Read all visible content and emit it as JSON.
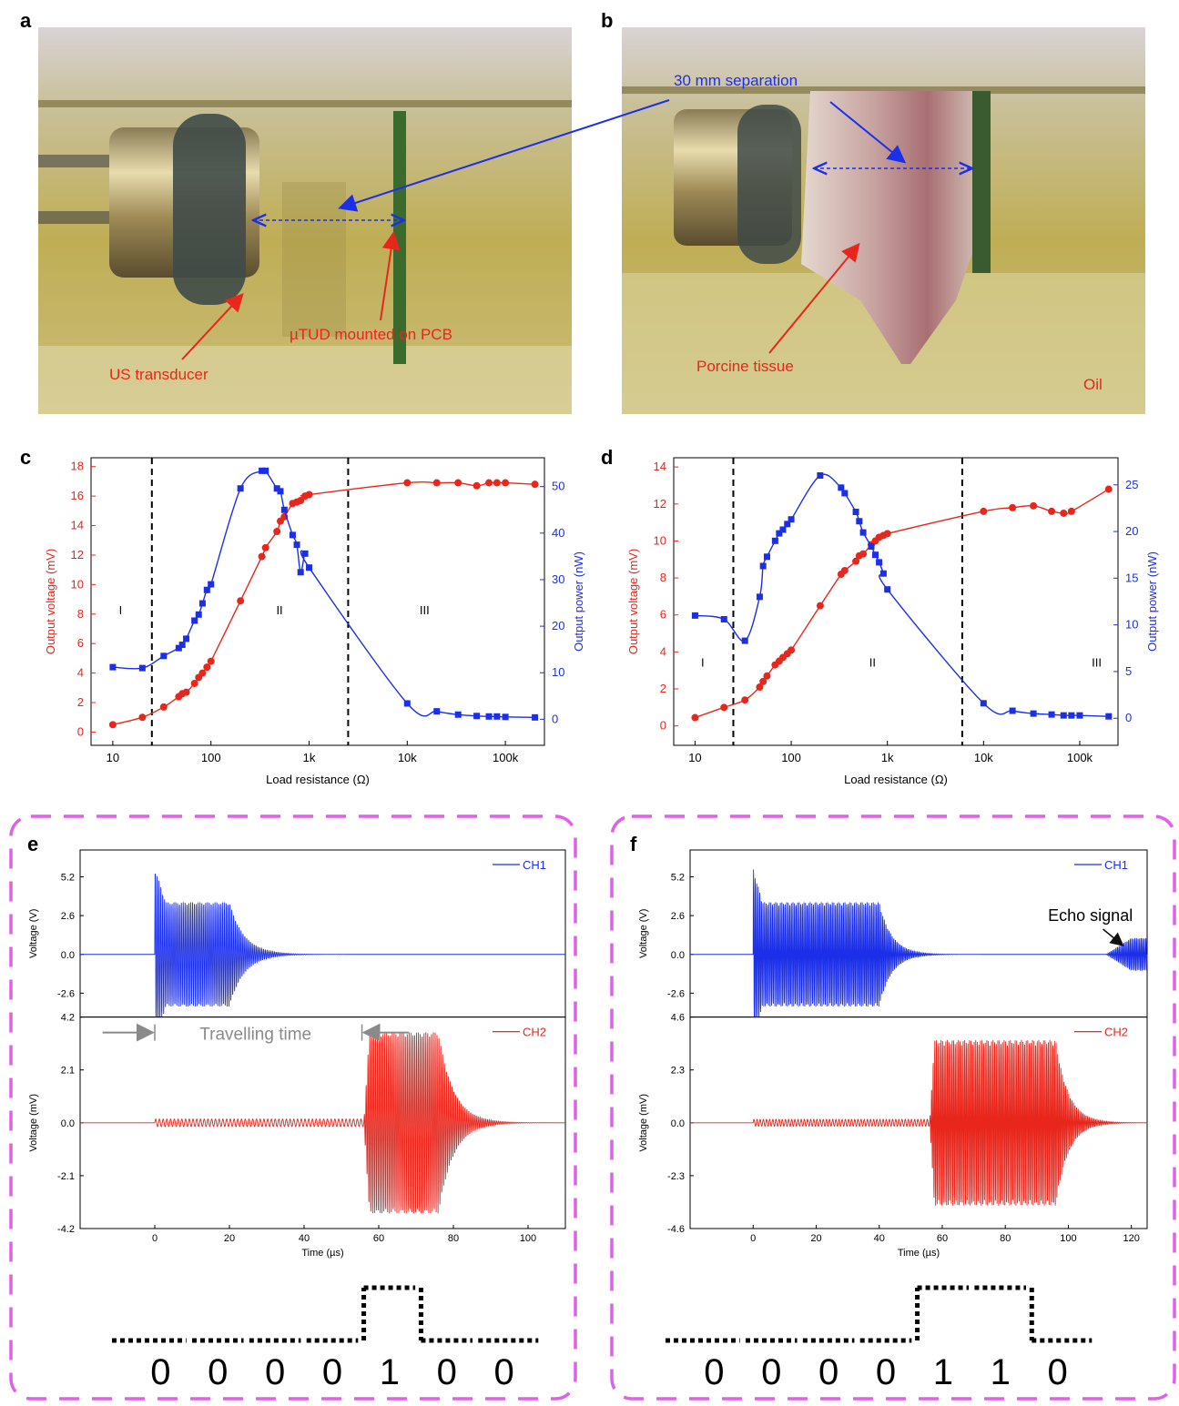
{
  "panel_labels": [
    "a",
    "b",
    "c",
    "d",
    "e",
    "f"
  ],
  "photo_annotations": {
    "a": {
      "us_transducer": "US transducer",
      "mtud": "µTUD mounted on PCB"
    },
    "b": {
      "separation": "30 mm separation",
      "porcine": "Porcine tissue",
      "oil": "Oil"
    }
  },
  "colors": {
    "red": "#e8261c",
    "blue": "#1c2fe8",
    "magenta": "#e060e8",
    "grey": "#8a8a8a",
    "photo_bg": "#b7a74e"
  },
  "chart_data": [
    {
      "id": "c",
      "type": "scatter",
      "x_scale": "log",
      "xlabel": "Load resistance (Ω)",
      "ylabel_left": "Output voltage (mV)",
      "ylabel_right": "Output power (nW)",
      "x_ticks": [
        {
          "v": 10,
          "label": "10"
        },
        {
          "v": 100,
          "label": "100"
        },
        {
          "v": 1000,
          "label": "1k"
        },
        {
          "v": 10000,
          "label": "10k"
        },
        {
          "v": 100000,
          "label": "100k"
        }
      ],
      "left_ticks": [
        {
          "v": 0,
          "label": "0"
        },
        {
          "v": 2,
          "label": "2"
        },
        {
          "v": 4,
          "label": "4"
        },
        {
          "v": 6,
          "label": "6"
        },
        {
          "v": 8,
          "label": "8"
        },
        {
          "v": 10,
          "label": "10"
        },
        {
          "v": 12,
          "label": "12"
        },
        {
          "v": 14,
          "label": "14"
        },
        {
          "v": 16,
          "label": "16"
        },
        {
          "v": 18,
          "label": "18"
        }
      ],
      "right_ticks": [
        {
          "v": 0,
          "label": "0"
        },
        {
          "v": 10,
          "label": "10"
        },
        {
          "v": 20,
          "label": "20"
        },
        {
          "v": 30,
          "label": "30"
        },
        {
          "v": 40,
          "label": "40"
        },
        {
          "v": 50,
          "label": "50"
        }
      ],
      "xlim": [
        6,
        250000
      ],
      "ylim_left": [
        -0.9,
        18.6
      ],
      "ylim_right": [
        -5.6,
        56.2
      ],
      "regions": [
        {
          "label": "I",
          "x": 12,
          "y": 8
        },
        {
          "label": "II",
          "x": 500,
          "y": 8
        },
        {
          "label": "III",
          "x": 15000,
          "y": 8
        }
      ],
      "dividers": [
        25,
        2500
      ],
      "series": [
        {
          "axis": "left",
          "color": "red",
          "x": [
            10,
            20,
            33,
            47,
            51,
            56,
            68,
            75,
            82,
            91,
            100,
            200,
            330,
            360,
            470,
            510,
            560,
            680,
            750,
            820,
            910,
            1000,
            10000,
            20000,
            33000,
            51000,
            68000,
            82000,
            100000,
            200000
          ],
          "y": [
            0.5,
            1.0,
            1.7,
            2.4,
            2.6,
            2.7,
            3.3,
            3.7,
            4.0,
            4.4,
            4.8,
            8.9,
            11.9,
            12.5,
            13.6,
            14.3,
            14.6,
            15.5,
            15.6,
            15.7,
            16.0,
            16.1,
            16.9,
            16.9,
            16.9,
            16.7,
            16.9,
            16.9,
            16.9,
            16.8
          ]
        },
        {
          "axis": "right",
          "color": "blue",
          "x": [
            10,
            20,
            33,
            47,
            51,
            56,
            68,
            75,
            82,
            91,
            100,
            200,
            330,
            360,
            470,
            510,
            560,
            680,
            750,
            820,
            910,
            1000,
            10000,
            20000,
            33000,
            51000,
            68000,
            82000,
            100000,
            200000
          ],
          "y": [
            11.2,
            11.0,
            13.6,
            15.3,
            16.0,
            17.3,
            21.2,
            22.5,
            24.9,
            27.8,
            29.0,
            49.6,
            53.4,
            53.4,
            49.6,
            49.0,
            45.0,
            39.6,
            37.5,
            31.6,
            35.6,
            32.6,
            3.4,
            1.7,
            1.0,
            0.7,
            0.6,
            0.6,
            0.5,
            0.4
          ]
        }
      ]
    },
    {
      "id": "d",
      "type": "scatter",
      "x_scale": "log",
      "xlabel": "Load resistance (Ω)",
      "ylabel_left": "Output voltage (mV)",
      "ylabel_right": "Output power (nW)",
      "x_ticks": [
        {
          "v": 10,
          "label": "10"
        },
        {
          "v": 100,
          "label": "100"
        },
        {
          "v": 1000,
          "label": "1k"
        },
        {
          "v": 10000,
          "label": "10k"
        },
        {
          "v": 100000,
          "label": "100k"
        }
      ],
      "left_ticks": [
        {
          "v": 0,
          "label": "0"
        },
        {
          "v": 2,
          "label": "2"
        },
        {
          "v": 4,
          "label": "4"
        },
        {
          "v": 6,
          "label": "6"
        },
        {
          "v": 8,
          "label": "8"
        },
        {
          "v": 10,
          "label": "10"
        },
        {
          "v": 12,
          "label": "12"
        },
        {
          "v": 14,
          "label": "14"
        }
      ],
      "right_ticks": [
        {
          "v": 0,
          "label": "0"
        },
        {
          "v": 5,
          "label": "5"
        },
        {
          "v": 10,
          "label": "10"
        },
        {
          "v": 15,
          "label": "15"
        },
        {
          "v": 20,
          "label": "20"
        },
        {
          "v": 25,
          "label": "25"
        }
      ],
      "xlim": [
        6,
        250000
      ],
      "ylim_left": [
        -1.05,
        14.5
      ],
      "ylim_right": [
        -2.9,
        27.9
      ],
      "regions": [
        {
          "label": "I",
          "x": 12,
          "y": 3.2
        },
        {
          "label": "II",
          "x": 700,
          "y": 3.2
        },
        {
          "label": "III",
          "x": 150000,
          "y": 3.2
        }
      ],
      "dividers": [
        25,
        6000
      ],
      "series": [
        {
          "axis": "left",
          "color": "red",
          "x": [
            10,
            20,
            33,
            47,
            51,
            56,
            68,
            75,
            82,
            91,
            100,
            200,
            330,
            360,
            470,
            510,
            560,
            680,
            750,
            820,
            910,
            1000,
            10000,
            20000,
            33000,
            51000,
            68000,
            82000,
            200000
          ],
          "y": [
            0.45,
            1.0,
            1.4,
            2.1,
            2.4,
            2.7,
            3.3,
            3.5,
            3.7,
            3.9,
            4.1,
            6.5,
            8.2,
            8.4,
            8.9,
            9.2,
            9.3,
            9.8,
            10.0,
            10.2,
            10.3,
            10.4,
            11.6,
            11.8,
            11.9,
            11.6,
            11.5,
            11.6,
            12.8
          ]
        },
        {
          "axis": "right",
          "color": "blue",
          "x": [
            10,
            20,
            33,
            47,
            51,
            56,
            68,
            75,
            82,
            91,
            100,
            200,
            330,
            360,
            470,
            510,
            560,
            680,
            750,
            820,
            910,
            1000,
            10000,
            20000,
            33000,
            51000,
            68000,
            82000,
            100000,
            200000
          ],
          "y": [
            11.0,
            10.6,
            8.3,
            13.0,
            16.3,
            17.3,
            19.0,
            19.8,
            20.2,
            20.8,
            21.3,
            26.0,
            24.7,
            24.1,
            22.1,
            21.1,
            19.9,
            18.4,
            17.5,
            16.7,
            15.5,
            13.8,
            1.6,
            0.8,
            0.5,
            0.4,
            0.3,
            0.3,
            0.3,
            0.2
          ]
        }
      ]
    },
    {
      "id": "e",
      "type": "line",
      "xlabel": "Time (µs)",
      "x_ticks": [
        {
          "v": 0,
          "label": "0"
        },
        {
          "v": 20,
          "label": "20"
        },
        {
          "v": 40,
          "label": "40"
        },
        {
          "v": 60,
          "label": "60"
        },
        {
          "v": 80,
          "label": "80"
        },
        {
          "v": 100,
          "label": "100"
        }
      ],
      "xlim": [
        -20,
        110
      ],
      "top": {
        "ylabel": "Voltage (V)",
        "legend": "CH1",
        "ticks": [
          {
            "v": -2.6,
            "label": "-2.6"
          },
          {
            "v": 0,
            "label": "0.0"
          },
          {
            "v": 2.6,
            "label": "2.6"
          },
          {
            "v": 5.2,
            "label": "5.2"
          }
        ],
        "ylim": [
          -4.2,
          7.0
        ],
        "burst_start": 0,
        "burst_end": 20,
        "amplitude": 3.5,
        "peak": 5.8,
        "cycles": 40
      },
      "bottom": {
        "ylabel": "Voltage (mV)",
        "legend": "CH2",
        "ticks": [
          {
            "v": -4.2,
            "label": "-4.2"
          },
          {
            "v": -2.1,
            "label": "-2.1"
          },
          {
            "v": 0,
            "label": "0.0"
          },
          {
            "v": 2.1,
            "label": "2.1"
          },
          {
            "v": 4.2,
            "label": "4.2"
          }
        ],
        "ylim": [
          -4.2,
          4.2
        ],
        "burst_start": 56,
        "burst_end": 76,
        "amplitude": 3.6,
        "cycles": 40
      },
      "annotation": "Travelling time",
      "bits": [
        "0",
        "0",
        "0",
        "0",
        "1",
        "0",
        "0"
      ]
    },
    {
      "id": "f",
      "type": "line",
      "xlabel": "Time (µs)",
      "x_ticks": [
        {
          "v": 0,
          "label": "0"
        },
        {
          "v": 20,
          "label": "20"
        },
        {
          "v": 40,
          "label": "40"
        },
        {
          "v": 60,
          "label": "60"
        },
        {
          "v": 80,
          "label": "80"
        },
        {
          "v": 100,
          "label": "100"
        },
        {
          "v": 120,
          "label": "120"
        }
      ],
      "xlim": [
        -20,
        125
      ],
      "top": {
        "ylabel": "Voltage (V)",
        "legend": "CH1",
        "ticks": [
          {
            "v": -2.6,
            "label": "-2.6"
          },
          {
            "v": 0,
            "label": "0.0"
          },
          {
            "v": 2.6,
            "label": "2.6"
          },
          {
            "v": 5.2,
            "label": "5.2"
          }
        ],
        "ylim": [
          -4.2,
          7.0
        ],
        "burst_start": 0,
        "burst_end": 40,
        "amplitude": 3.5,
        "peak": 5.8,
        "cycles": 80
      },
      "bottom": {
        "ylabel": "Voltage (mV)",
        "legend": "CH2",
        "ticks": [
          {
            "v": -4.6,
            "label": "-4.6"
          },
          {
            "v": -2.3,
            "label": "-2.3"
          },
          {
            "v": 0,
            "label": "0.0"
          },
          {
            "v": 2.3,
            "label": "2.3"
          },
          {
            "v": 4.6,
            "label": "4.6"
          }
        ],
        "ylim": [
          -4.6,
          4.6
        ],
        "burst_start": 56,
        "burst_end": 96,
        "amplitude": 3.6,
        "cycles": 80
      },
      "annotation": "Echo signal",
      "bits": [
        "0",
        "0",
        "0",
        "0",
        "1",
        "1",
        "0"
      ]
    }
  ]
}
